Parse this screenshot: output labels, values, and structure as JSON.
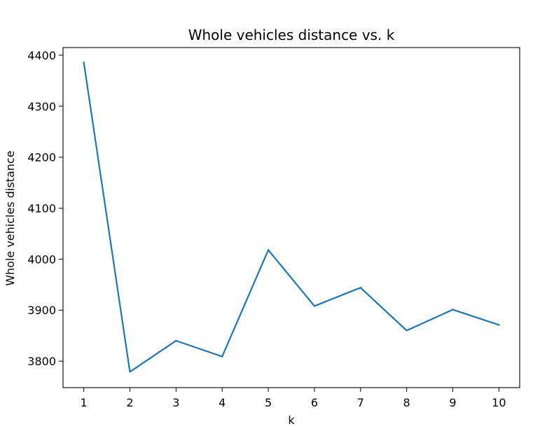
{
  "chart_data": {
    "type": "line",
    "title": "Whole vehicles distance vs. k",
    "xlabel": "k",
    "ylabel": "Whole vehicles distance",
    "x": [
      1,
      2,
      3,
      4,
      5,
      6,
      7,
      8,
      9,
      10
    ],
    "series": [
      {
        "values": [
          4386,
          3779,
          3840,
          3809,
          4018,
          3908,
          3944,
          3860,
          3901,
          3871
        ]
      }
    ],
    "xticks": [
      "1",
      "2",
      "3",
      "4",
      "5",
      "6",
      "7",
      "8",
      "9",
      "10"
    ],
    "yticks": [
      "3800",
      "3900",
      "4000",
      "4100",
      "4200",
      "4300",
      "4400"
    ],
    "xlim": [
      0.55,
      10.45
    ],
    "ylim": [
      3748,
      4415
    ],
    "grid": false,
    "line_color": "#1f77b4"
  }
}
